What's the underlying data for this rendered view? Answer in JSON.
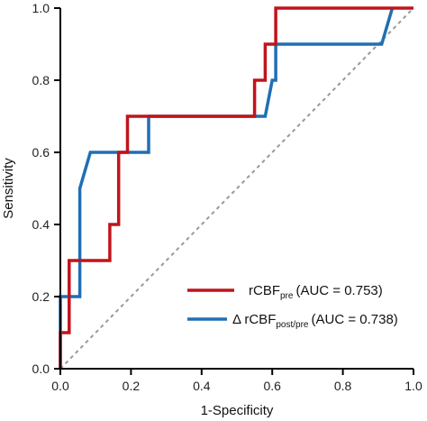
{
  "chart_data": {
    "type": "line",
    "title": "",
    "xlabel": "1-Specificity",
    "ylabel": "Sensitivity",
    "xlim": [
      0,
      1
    ],
    "ylim": [
      0,
      1
    ],
    "xticks": [
      "0.0",
      "0.2",
      "0.4",
      "0.6",
      "0.8",
      "1.0"
    ],
    "yticks": [
      "0.0",
      "0.2",
      "0.4",
      "0.6",
      "0.8",
      "1.0"
    ],
    "grid": false,
    "legend_position": "bottom-right",
    "reference_line": {
      "style": "dashed",
      "color": "#999999",
      "x": [
        0,
        1
      ],
      "y": [
        0,
        1
      ]
    },
    "series": [
      {
        "name": "rCBFpre",
        "label_main": "rCBF",
        "label_sub": "pre",
        "label_auc": "(AUC = 0.753)",
        "color": "#c0141c",
        "x": [
          0,
          0,
          0.025,
          0.025,
          0.14,
          0.14,
          0.165,
          0.165,
          0.19,
          0.19,
          0.55,
          0.55,
          0.58,
          0.58,
          0.61,
          0.61,
          1
        ],
        "y": [
          0,
          0.1,
          0.1,
          0.3,
          0.3,
          0.4,
          0.4,
          0.6,
          0.6,
          0.7,
          0.7,
          0.8,
          0.8,
          0.9,
          0.9,
          1.0,
          1.0
        ]
      },
      {
        "name": "Δ rCBFpost/pre",
        "label_main": "Δ rCBF",
        "label_sub": "post/pre",
        "label_auc": "(AUC = 0.738)",
        "color": "#1f6fb4",
        "x": [
          0,
          0,
          0.055,
          0.055,
          0.085,
          0.25,
          0.25,
          0.58,
          0.6,
          0.61,
          0.61,
          0.91,
          0.94
        ],
        "y": [
          0,
          0.2,
          0.2,
          0.5,
          0.6,
          0.6,
          0.7,
          0.7,
          0.8,
          0.8,
          0.9,
          0.9,
          1.0
        ]
      }
    ]
  }
}
